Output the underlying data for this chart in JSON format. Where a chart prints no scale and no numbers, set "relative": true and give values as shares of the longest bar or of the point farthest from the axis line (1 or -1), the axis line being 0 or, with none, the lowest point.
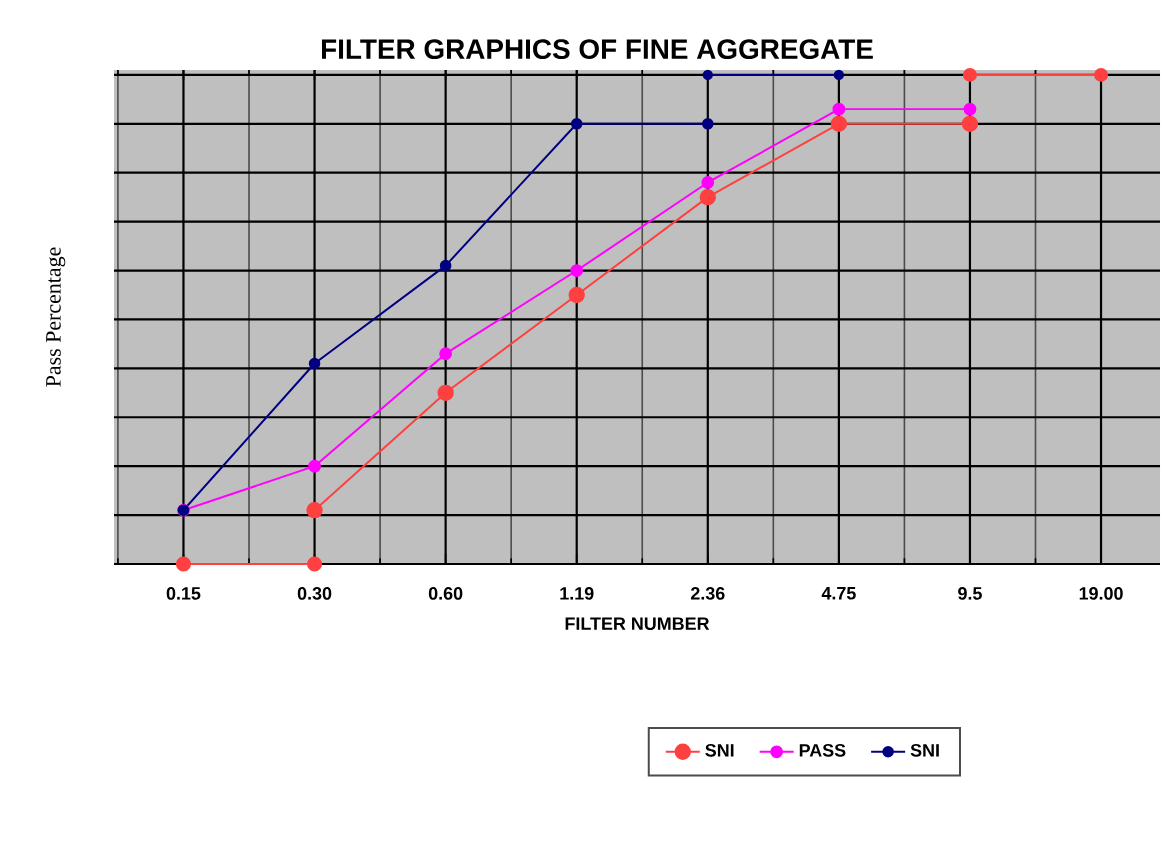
{
  "chart_data": {
    "type": "line",
    "title": "FILTER GRAPHICS OF FINE AGGREGATE",
    "xlabel": "FILTER NUMBER",
    "ylabel": "Pass Percentage",
    "relative": true,
    "categories": [
      "0.15",
      "0.30",
      "0.60",
      "1.19",
      "2.36",
      "4.75",
      "9.5",
      "19.00"
    ],
    "series": [
      {
        "name": "SNI",
        "color": "#ff4040",
        "values": [
          null,
          0.11,
          0.35,
          0.55,
          0.75,
          0.9,
          0.9,
          null
        ]
      },
      {
        "color": "#ff4040",
        "values": [
          0,
          0,
          null,
          null,
          null,
          null,
          null,
          null
        ]
      },
      {
        "color": "#ff4040",
        "values": [
          null,
          null,
          null,
          null,
          null,
          null,
          1,
          1
        ]
      },
      {
        "name": "PASS",
        "color": "#ff00ff",
        "values": [
          0.11,
          0.2,
          0.43,
          0.6,
          0.78,
          0.93,
          0.93,
          null
        ]
      },
      {
        "name": "SNI",
        "color": "#000080",
        "values": [
          0.11,
          0.41,
          0.61,
          0.9,
          0.9,
          null,
          null,
          null
        ]
      },
      {
        "color": "#000080",
        "values": [
          null,
          null,
          null,
          null,
          1,
          1,
          null,
          null
        ]
      }
    ],
    "grid": true,
    "legend": "bottom",
    "marker": "circle",
    "line_style": "solid"
  }
}
